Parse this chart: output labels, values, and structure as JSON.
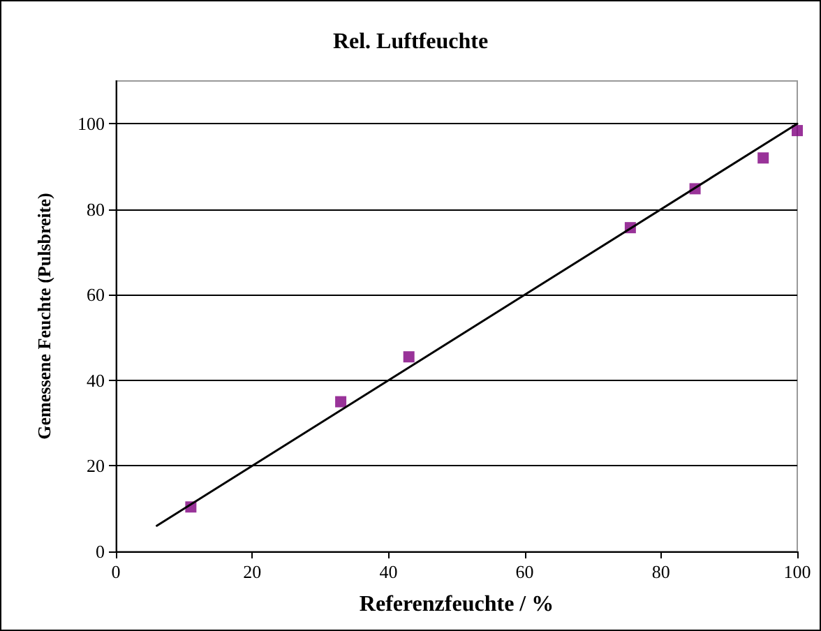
{
  "chart_data": {
    "type": "scatter",
    "title": "Rel. Luftfeuchte",
    "xlabel": "Referenzfeuchte / %",
    "ylabel": "Gemessene Feuchte (Pulsbreite)",
    "x": [
      11,
      33,
      43,
      75.5,
      85,
      95,
      100
    ],
    "series": [
      {
        "color": "#800080",
        "marker": "square",
        "values": [
          10.4,
          35,
          45.5,
          75.7,
          84.8,
          92,
          98.4
        ]
      },
      {
        "type": "line",
        "color": "#000000",
        "marker": "none",
        "line_style": "solid",
        "x": [
          6,
          100
        ],
        "values": [
          6,
          100
        ]
      }
    ],
    "xlim": [
      0,
      100
    ],
    "xticks": [
      0,
      20,
      40,
      60,
      80,
      100
    ],
    "ylim": [
      0,
      110
    ],
    "yticks": [
      0,
      20,
      40,
      60,
      80,
      100
    ],
    "grid": "y"
  }
}
